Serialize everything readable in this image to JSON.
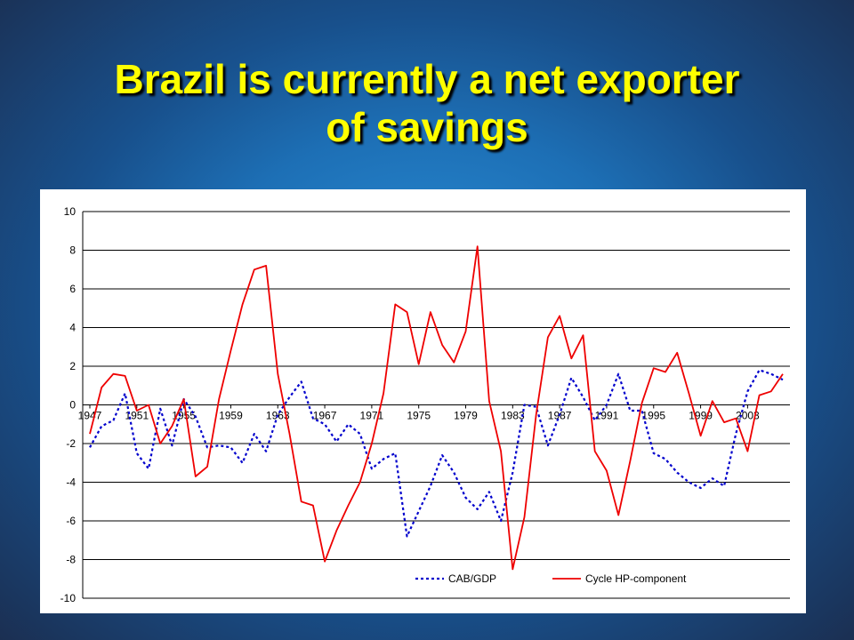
{
  "slide": {
    "title_line1": "Brazil is currently a net exporter",
    "title_line2": "of savings"
  },
  "colors": {
    "title": "#ffff00",
    "cab_series": "#0000cc",
    "cycle_series": "#ee0000"
  },
  "chart_data": {
    "type": "line",
    "title": "",
    "xlabel": "",
    "ylabel": "",
    "ylim": [
      -10,
      10
    ],
    "y_ticks": [
      10,
      8,
      6,
      4,
      2,
      0,
      -2,
      -4,
      -6,
      -8,
      -10
    ],
    "x": [
      1947,
      1948,
      1949,
      1950,
      1951,
      1952,
      1953,
      1954,
      1955,
      1956,
      1957,
      1958,
      1959,
      1960,
      1961,
      1962,
      1963,
      1964,
      1965,
      1966,
      1967,
      1968,
      1969,
      1970,
      1971,
      1972,
      1973,
      1974,
      1975,
      1976,
      1977,
      1978,
      1979,
      1980,
      1981,
      1982,
      1983,
      1984,
      1985,
      1986,
      1987,
      1988,
      1989,
      1990,
      1991,
      1992,
      1993,
      1994,
      1995,
      1996,
      1997,
      1998,
      1999,
      2000,
      2001,
      2002,
      2003,
      2004,
      2005,
      2006
    ],
    "x_tick_labels": [
      "1947",
      "1951",
      "1955",
      "1959",
      "1963",
      "1967",
      "1971",
      "1975",
      "1979",
      "1983",
      "1987",
      "1991",
      "1995",
      "1999",
      "2003"
    ],
    "grid": "horizontal",
    "legend_position": "bottom-right",
    "series": [
      {
        "name": "CAB/GDP",
        "style": "dotted",
        "values": [
          -2.2,
          -1.1,
          -0.8,
          0.6,
          -2.5,
          -3.3,
          -0.2,
          -2.1,
          0.3,
          -0.6,
          -2.2,
          -2.1,
          -2.2,
          -3.0,
          -1.5,
          -2.4,
          -0.5,
          0.4,
          1.2,
          -0.7,
          -1.0,
          -1.9,
          -1.0,
          -1.5,
          -3.3,
          -2.8,
          -2.5,
          -6.8,
          -5.5,
          -4.2,
          -2.6,
          -3.5,
          -4.8,
          -5.4,
          -4.5,
          -6.0,
          -3.5,
          0.0,
          -0.1,
          -2.1,
          -0.5,
          1.4,
          0.4,
          -0.8,
          0.0,
          1.6,
          -0.3,
          -0.3,
          -2.5,
          -2.8,
          -3.5,
          -4.0,
          -4.3,
          -3.8,
          -4.2,
          -1.5,
          0.7,
          1.8,
          1.6,
          1.3
        ]
      },
      {
        "name": "Cycle HP-component",
        "style": "solid",
        "values": [
          -1.5,
          0.9,
          1.6,
          1.5,
          -0.3,
          0.0,
          -2.0,
          -1.1,
          0.3,
          -3.7,
          -3.2,
          0.3,
          2.8,
          5.2,
          7.0,
          7.2,
          1.6,
          -1.5,
          -5.0,
          -5.2,
          -8.1,
          -6.5,
          -5.2,
          -4.0,
          -2.0,
          0.6,
          5.2,
          4.8,
          2.1,
          4.8,
          3.1,
          2.2,
          3.8,
          8.2,
          0.2,
          -2.4,
          -8.5,
          -5.8,
          -0.5,
          3.5,
          4.6,
          2.4,
          3.6,
          -2.4,
          -3.4,
          -5.7,
          -2.9,
          0.1,
          1.9,
          1.7,
          2.7,
          0.6,
          -1.6,
          0.2,
          -0.9,
          -0.7,
          -2.4,
          0.5,
          0.7,
          1.6
        ]
      }
    ]
  }
}
